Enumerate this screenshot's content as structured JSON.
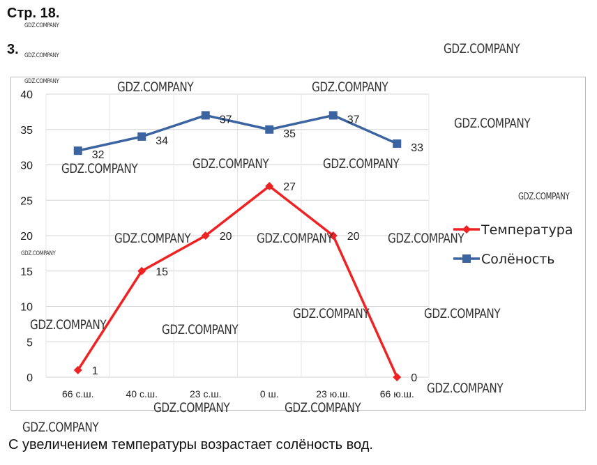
{
  "page_label": "Стр. 18.",
  "task_number": "3.",
  "watermark": "GDZ.COMPANY",
  "conclusion": "С увеличением температуры возрастает солёность вод.",
  "chart_data": {
    "type": "line",
    "categories": [
      "66 с.ш.",
      "40 с.ш.",
      "23 с.ш.",
      "0 ш.",
      "23 ю.ш.",
      "66 ю.ш."
    ],
    "series": [
      {
        "name": "Температура",
        "values": [
          1,
          15,
          20,
          27,
          20,
          0
        ],
        "color": "#ee2222",
        "marker": "diamond"
      },
      {
        "name": "Солёность",
        "values": [
          32,
          34,
          37,
          35,
          37,
          33
        ],
        "color": "#3b64a0",
        "marker": "square"
      }
    ],
    "ylim": [
      0,
      40
    ],
    "yticks": [
      0,
      5,
      10,
      15,
      20,
      25,
      30,
      35,
      40
    ],
    "grid": true,
    "legend": "right",
    "title": "",
    "xlabel": "",
    "ylabel": ""
  }
}
